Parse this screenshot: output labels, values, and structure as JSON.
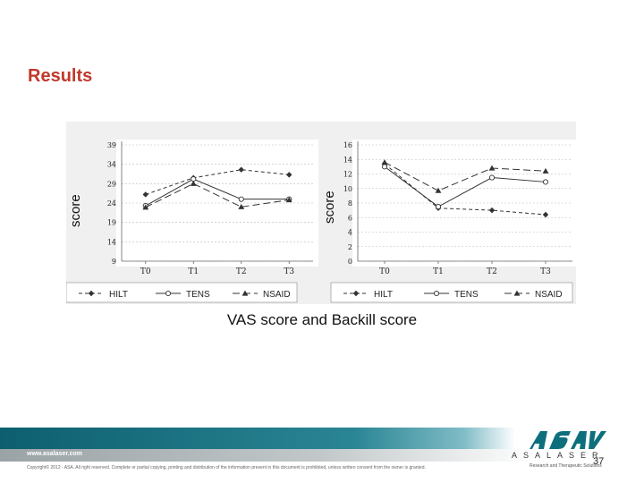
{
  "slide": {
    "title": "Results",
    "caption": "VAS score and Backill score",
    "page_number": "37"
  },
  "footer": {
    "url": "www.asalaser.com",
    "copyright": "Copyright© 2012 - ASA. All right reserved. Complete or partial copying, printing and distribution of the information present in this document is prohibited, unless written consent from the owner is granted.",
    "logo_letters": "ASALASER",
    "logo_tagline": "Research and Therapeutic Solutions"
  },
  "colors": {
    "title": "#c0392b",
    "footer_band": "#0d5f6f",
    "series": "#333333",
    "grid": "#bbbbbb"
  },
  "chart_data": [
    {
      "type": "line",
      "ylabel": "score",
      "categories": [
        "T0",
        "T1",
        "T2",
        "T3"
      ],
      "yticks": [
        9,
        14,
        19,
        24,
        29,
        34,
        39
      ],
      "ylim": [
        9,
        39
      ],
      "grid": true,
      "legend_position": "bottom",
      "series": [
        {
          "name": "HILT",
          "marker": "diamond",
          "dash": "4,3",
          "values": [
            26.2,
            30.5,
            32.6,
            31.3
          ]
        },
        {
          "name": "TENS",
          "marker": "circle",
          "dash": "",
          "values": [
            23.3,
            30.2,
            25.0,
            25.0
          ]
        },
        {
          "name": "NSAID",
          "marker": "triangle",
          "dash": "8,4",
          "values": [
            22.9,
            29.0,
            23.0,
            24.8
          ]
        }
      ]
    },
    {
      "type": "line",
      "ylabel": "score",
      "categories": [
        "T0",
        "T1",
        "T2",
        "T3"
      ],
      "yticks": [
        0,
        2,
        4,
        6,
        8,
        10,
        12,
        14,
        16
      ],
      "ylim": [
        0,
        16
      ],
      "grid": true,
      "legend_position": "bottom",
      "series": [
        {
          "name": "HILT",
          "marker": "diamond",
          "dash": "4,3",
          "values": [
            13.4,
            7.3,
            7.0,
            6.4
          ]
        },
        {
          "name": "TENS",
          "marker": "circle",
          "dash": "",
          "values": [
            13.0,
            7.5,
            11.5,
            10.9
          ]
        },
        {
          "name": "NSAID",
          "marker": "triangle",
          "dash": "8,4",
          "values": [
            13.6,
            9.7,
            12.8,
            12.4
          ]
        }
      ]
    }
  ]
}
